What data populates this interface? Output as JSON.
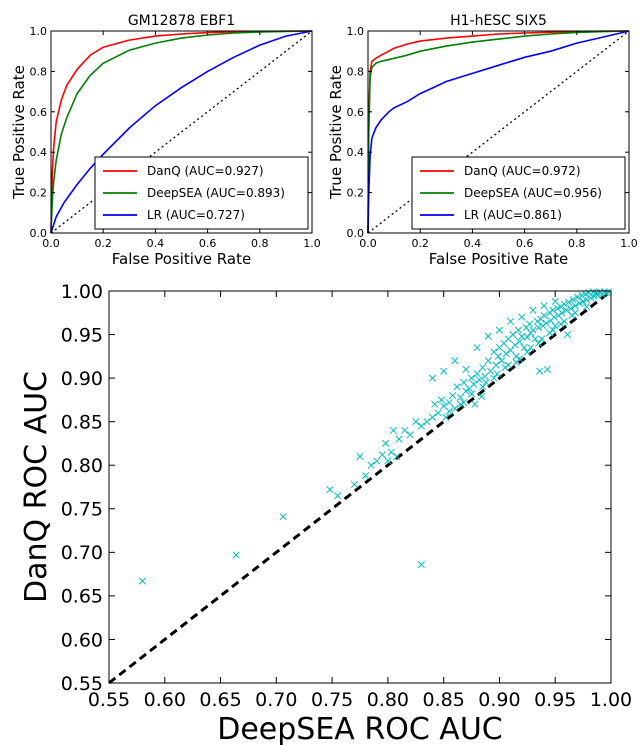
{
  "chart_data": [
    {
      "type": "line",
      "title": "GM12878 EBF1",
      "xlabel": "False Positive Rate",
      "ylabel": "True Positive Rate",
      "xlim": [
        0,
        1
      ],
      "ylim": [
        0,
        1
      ],
      "xticks": [
        "0.0",
        "0.2",
        "0.4",
        "0.6",
        "0.8",
        "1.0"
      ],
      "yticks": [
        "0.0",
        "0.2",
        "0.4",
        "0.6",
        "0.8",
        "1.0"
      ],
      "legend_position": "bottom-right",
      "grid": false,
      "series": [
        {
          "name": "DanQ (AUC=0.927)",
          "color": "#ff0000",
          "x": [
            0,
            0.005,
            0.01,
            0.02,
            0.04,
            0.06,
            0.1,
            0.15,
            0.2,
            0.3,
            0.4,
            0.5,
            0.6,
            0.7,
            0.8,
            0.9,
            1.0
          ],
          "y": [
            0,
            0.3,
            0.42,
            0.55,
            0.66,
            0.73,
            0.81,
            0.88,
            0.92,
            0.955,
            0.975,
            0.985,
            0.992,
            0.996,
            0.998,
            0.999,
            1.0
          ]
        },
        {
          "name": "DeepSEA (AUC=0.893)",
          "color": "#008000",
          "x": [
            0,
            0.005,
            0.01,
            0.02,
            0.04,
            0.06,
            0.1,
            0.15,
            0.2,
            0.3,
            0.4,
            0.5,
            0.6,
            0.7,
            0.8,
            0.9,
            1.0
          ],
          "y": [
            0,
            0.16,
            0.25,
            0.36,
            0.49,
            0.57,
            0.69,
            0.78,
            0.84,
            0.905,
            0.94,
            0.965,
            0.98,
            0.99,
            0.995,
            0.998,
            1.0
          ]
        },
        {
          "name": "LR (AUC=0.727)",
          "color": "#0000ff",
          "x": [
            0,
            0.01,
            0.02,
            0.05,
            0.1,
            0.15,
            0.2,
            0.3,
            0.4,
            0.5,
            0.6,
            0.7,
            0.8,
            0.9,
            1.0
          ],
          "y": [
            0,
            0.04,
            0.08,
            0.15,
            0.24,
            0.32,
            0.39,
            0.52,
            0.63,
            0.72,
            0.8,
            0.87,
            0.93,
            0.975,
            1.0
          ]
        }
      ],
      "reference_line": {
        "style": "dotted",
        "color": "#000000",
        "from": [
          0,
          0
        ],
        "to": [
          1,
          1
        ]
      }
    },
    {
      "type": "line",
      "title": "H1-hESC SIX5",
      "xlabel": "False Positive Rate",
      "ylabel": "True Positive Rate",
      "xlim": [
        0,
        1
      ],
      "ylim": [
        0,
        1
      ],
      "xticks": [
        "0.0",
        "0.2",
        "0.4",
        "0.6",
        "0.8",
        "1.0"
      ],
      "yticks": [
        "0.0",
        "0.2",
        "0.4",
        "0.6",
        "0.8",
        "1.0"
      ],
      "legend_position": "bottom-right",
      "grid": false,
      "series": [
        {
          "name": "DanQ (AUC=0.972)",
          "color": "#ff0000",
          "x": [
            0,
            0.003,
            0.008,
            0.015,
            0.03,
            0.05,
            0.08,
            0.1,
            0.15,
            0.2,
            0.3,
            0.4,
            0.5,
            0.6,
            0.7,
            0.8,
            0.9,
            1.0
          ],
          "y": [
            0,
            0.55,
            0.8,
            0.85,
            0.865,
            0.88,
            0.9,
            0.915,
            0.935,
            0.95,
            0.965,
            0.975,
            0.985,
            0.99,
            0.994,
            0.997,
            0.999,
            1.0
          ]
        },
        {
          "name": "DeepSEA (AUC=0.956)",
          "color": "#008000",
          "x": [
            0,
            0.003,
            0.008,
            0.015,
            0.03,
            0.05,
            0.1,
            0.15,
            0.2,
            0.3,
            0.4,
            0.5,
            0.6,
            0.7,
            0.8,
            0.9,
            1.0
          ],
          "y": [
            0,
            0.5,
            0.77,
            0.82,
            0.84,
            0.85,
            0.865,
            0.88,
            0.9,
            0.925,
            0.945,
            0.96,
            0.975,
            0.985,
            0.993,
            0.997,
            1.0
          ]
        },
        {
          "name": "LR (AUC=0.861)",
          "color": "#0000ff",
          "x": [
            0,
            0.003,
            0.008,
            0.015,
            0.03,
            0.05,
            0.08,
            0.1,
            0.15,
            0.2,
            0.25,
            0.3,
            0.4,
            0.5,
            0.6,
            0.7,
            0.8,
            0.9,
            1.0
          ],
          "y": [
            0,
            0.2,
            0.38,
            0.47,
            0.52,
            0.56,
            0.6,
            0.62,
            0.65,
            0.69,
            0.72,
            0.75,
            0.79,
            0.83,
            0.87,
            0.9,
            0.94,
            0.97,
            1.0
          ]
        }
      ],
      "reference_line": {
        "style": "dotted",
        "color": "#000000",
        "from": [
          0,
          0
        ],
        "to": [
          1,
          1
        ]
      }
    },
    {
      "type": "scatter",
      "title": "",
      "xlabel": "DeepSEA ROC AUC",
      "ylabel": "DanQ ROC AUC",
      "xlim": [
        0.55,
        1.0
      ],
      "ylim": [
        0.55,
        1.0
      ],
      "xticks": [
        "0.55",
        "0.60",
        "0.65",
        "0.70",
        "0.75",
        "0.80",
        "0.85",
        "0.90",
        "0.95",
        "1.00"
      ],
      "yticks": [
        "0.55",
        "0.60",
        "0.65",
        "0.70",
        "0.75",
        "0.80",
        "0.85",
        "0.90",
        "0.95",
        "1.00"
      ],
      "marker": "x",
      "marker_color": "#00bfbf",
      "grid": false,
      "reference_line": {
        "style": "dashed",
        "color": "#000000",
        "from": [
          0.55,
          0.55
        ],
        "to": [
          1.0,
          1.0
        ]
      },
      "points": [
        [
          0.58,
          0.667
        ],
        [
          0.664,
          0.697
        ],
        [
          0.706,
          0.741
        ],
        [
          0.748,
          0.772
        ],
        [
          0.755,
          0.765
        ],
        [
          0.77,
          0.778
        ],
        [
          0.78,
          0.788
        ],
        [
          0.775,
          0.81
        ],
        [
          0.785,
          0.8
        ],
        [
          0.79,
          0.805
        ],
        [
          0.795,
          0.812
        ],
        [
          0.8,
          0.805
        ],
        [
          0.798,
          0.825
        ],
        [
          0.803,
          0.815
        ],
        [
          0.808,
          0.81
        ],
        [
          0.81,
          0.83
        ],
        [
          0.815,
          0.84
        ],
        [
          0.83,
          0.686
        ],
        [
          0.83,
          0.845
        ],
        [
          0.835,
          0.85
        ],
        [
          0.84,
          0.855
        ],
        [
          0.842,
          0.87
        ],
        [
          0.845,
          0.86
        ],
        [
          0.848,
          0.875
        ],
        [
          0.85,
          0.868
        ],
        [
          0.852,
          0.855
        ],
        [
          0.855,
          0.872
        ],
        [
          0.858,
          0.88
        ],
        [
          0.86,
          0.865
        ],
        [
          0.862,
          0.89
        ],
        [
          0.865,
          0.878
        ],
        [
          0.868,
          0.895
        ],
        [
          0.87,
          0.885
        ],
        [
          0.873,
          0.888
        ],
        [
          0.875,
          0.9
        ],
        [
          0.877,
          0.893
        ],
        [
          0.88,
          0.905
        ],
        [
          0.882,
          0.898
        ],
        [
          0.884,
          0.879
        ],
        [
          0.885,
          0.912
        ],
        [
          0.887,
          0.902
        ],
        [
          0.89,
          0.92
        ],
        [
          0.892,
          0.908
        ],
        [
          0.895,
          0.93
        ],
        [
          0.897,
          0.915
        ],
        [
          0.899,
          0.925
        ],
        [
          0.9,
          0.935
        ],
        [
          0.902,
          0.92
        ],
        [
          0.904,
          0.94
        ],
        [
          0.906,
          0.928
        ],
        [
          0.908,
          0.945
        ],
        [
          0.91,
          0.932
        ],
        [
          0.912,
          0.95
        ],
        [
          0.914,
          0.938
        ],
        [
          0.915,
          0.918
        ],
        [
          0.917,
          0.955
        ],
        [
          0.918,
          0.942
        ],
        [
          0.92,
          0.948
        ],
        [
          0.922,
          0.935
        ],
        [
          0.924,
          0.958
        ],
        [
          0.925,
          0.947
        ],
        [
          0.927,
          0.962
        ],
        [
          0.928,
          0.952
        ],
        [
          0.93,
          0.955
        ],
        [
          0.932,
          0.945
        ],
        [
          0.934,
          0.965
        ],
        [
          0.935,
          0.958
        ],
        [
          0.936,
          0.908
        ],
        [
          0.937,
          0.968
        ],
        [
          0.939,
          0.96
        ],
        [
          0.94,
          0.972
        ],
        [
          0.942,
          0.963
        ],
        [
          0.943,
          0.91
        ],
        [
          0.945,
          0.975
        ],
        [
          0.946,
          0.966
        ],
        [
          0.948,
          0.978
        ],
        [
          0.949,
          0.97
        ],
        [
          0.95,
          0.96
        ],
        [
          0.952,
          0.98
        ],
        [
          0.953,
          0.972
        ],
        [
          0.955,
          0.982
        ],
        [
          0.956,
          0.975
        ],
        [
          0.958,
          0.985
        ],
        [
          0.96,
          0.978
        ],
        [
          0.961,
          0.95
        ],
        [
          0.962,
          0.987
        ],
        [
          0.964,
          0.98
        ],
        [
          0.966,
          0.99
        ],
        [
          0.968,
          0.983
        ],
        [
          0.97,
          0.993
        ],
        [
          0.972,
          0.986
        ],
        [
          0.974,
          0.995
        ],
        [
          0.975,
          0.988
        ],
        [
          0.977,
          0.996
        ],
        [
          0.978,
          0.99
        ],
        [
          0.98,
          0.998
        ],
        [
          0.982,
          0.992
        ],
        [
          0.984,
          0.999
        ],
        [
          0.985,
          0.994
        ],
        [
          0.987,
          0.998
        ],
        [
          0.988,
          0.995
        ],
        [
          0.99,
          0.999
        ],
        [
          0.992,
          0.996
        ],
        [
          0.994,
          0.999
        ],
        [
          0.996,
          0.998
        ],
        [
          0.998,
          0.999
        ],
        [
          0.965,
          0.972
        ],
        [
          0.955,
          0.962
        ],
        [
          0.945,
          0.952
        ],
        [
          0.935,
          0.94
        ],
        [
          0.925,
          0.93
        ],
        [
          0.915,
          0.925
        ],
        [
          0.905,
          0.912
        ],
        [
          0.895,
          0.9
        ],
        [
          0.885,
          0.89
        ],
        [
          0.875,
          0.882
        ],
        [
          0.865,
          0.87
        ],
        [
          0.855,
          0.862
        ],
        [
          0.868,
          0.872
        ],
        [
          0.878,
          0.87
        ],
        [
          0.888,
          0.895
        ],
        [
          0.898,
          0.905
        ],
        [
          0.908,
          0.915
        ],
        [
          0.918,
          0.922
        ],
        [
          0.928,
          0.935
        ],
        [
          0.938,
          0.945
        ],
        [
          0.948,
          0.955
        ],
        [
          0.958,
          0.965
        ],
        [
          0.968,
          0.975
        ],
        [
          0.978,
          0.982
        ],
        [
          0.91,
          0.965
        ],
        [
          0.92,
          0.97
        ],
        [
          0.93,
          0.978
        ],
        [
          0.94,
          0.983
        ],
        [
          0.95,
          0.988
        ],
        [
          0.9,
          0.955
        ],
        [
          0.89,
          0.948
        ],
        [
          0.88,
          0.935
        ],
        [
          0.86,
          0.92
        ],
        [
          0.85,
          0.908
        ],
        [
          0.84,
          0.9
        ],
        [
          0.87,
          0.91
        ],
        [
          0.805,
          0.84
        ],
        [
          0.82,
          0.835
        ],
        [
          0.825,
          0.85
        ]
      ]
    }
  ]
}
